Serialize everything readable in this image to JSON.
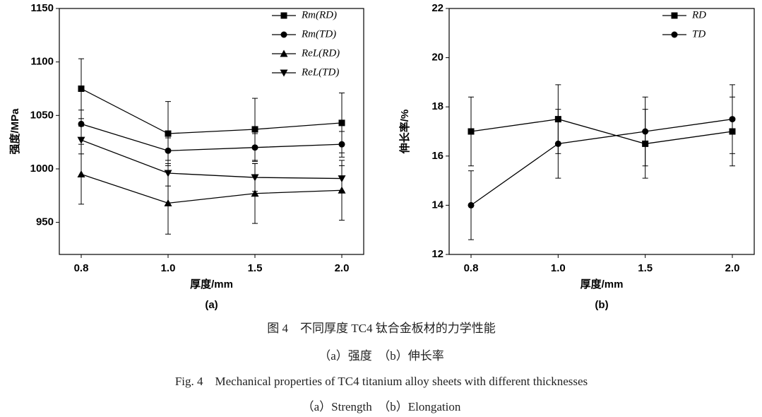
{
  "chart_data": [
    {
      "type": "line",
      "xlabel": "厚度/mm",
      "ylabel": "强度/MPa",
      "panel_label": "(a)",
      "categories": [
        "0.8",
        "1.0",
        "1.5",
        "2.0"
      ],
      "ylim": [
        920,
        1150
      ],
      "yticks": [
        950,
        1000,
        1050,
        1100,
        1150
      ],
      "legend": "upper right",
      "series": [
        {
          "name": "Rm(RD)",
          "color": "#000000",
          "marker": "square",
          "values": [
            1075,
            1033,
            1037,
            1043
          ],
          "errors": [
            28,
            30,
            29,
            28
          ]
        },
        {
          "name": "Rm(TD)",
          "color": "#000000",
          "marker": "circle",
          "values": [
            1042,
            1017,
            1020,
            1023
          ],
          "errors": [
            13,
            12,
            13,
            12
          ]
        },
        {
          "name": "ReL(RD)",
          "color": "#000000",
          "marker": "triangle-up",
          "values": [
            995,
            968,
            977,
            980
          ],
          "errors": [
            28,
            29,
            28,
            28
          ]
        },
        {
          "name": "ReL(TD)",
          "color": "#000000",
          "marker": "triangle-down",
          "values": [
            1027,
            996,
            992,
            991
          ],
          "errors": [
            13,
            12,
            13,
            12
          ]
        }
      ]
    },
    {
      "type": "line",
      "xlabel": "厚度/mm",
      "ylabel": "伸长率/%",
      "panel_label": "(b)",
      "categories": [
        "0.8",
        "1.0",
        "1.5",
        "2.0"
      ],
      "ylim": [
        12,
        22
      ],
      "yticks": [
        12,
        14,
        16,
        18,
        20,
        22
      ],
      "legend": "upper right",
      "series": [
        {
          "name": "RD",
          "color": "#000000",
          "marker": "square",
          "values": [
            17,
            17.5,
            16.5,
            17
          ],
          "errors": [
            1.4,
            1.4,
            1.4,
            1.4
          ]
        },
        {
          "name": "TD",
          "color": "#000000",
          "marker": "circle",
          "values": [
            14,
            16.5,
            17,
            17.5
          ],
          "errors": [
            1.4,
            1.4,
            1.4,
            1.4
          ]
        }
      ]
    }
  ],
  "caption": {
    "cn_title": "图 4　不同厚度 TC4 钛合金板材的力学性能",
    "cn_sub": "（a）强度　（b）伸长率",
    "en_title": "Fig. 4　Mechanical properties of TC4 titanium alloy sheets with different thicknesses",
    "en_sub": "（a）Strength　（b）Elongation"
  }
}
